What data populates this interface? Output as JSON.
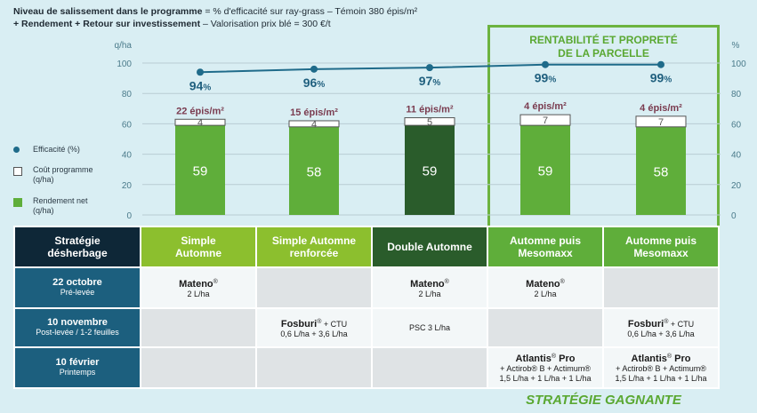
{
  "header": {
    "line1_bold": "Niveau de salissement dans le programme",
    "line1_rest": " = % d'efficacité sur ray-grass – Témoin 380 épis/m²",
    "line2_bold": "+ Rendement + Retour sur investissement",
    "line2_rest": " – Valorisation prix blé = 300 €/t"
  },
  "legend": {
    "efficacite": "Efficacité (%)",
    "cout": "Coût programme (q/ha)",
    "rendement": "Rendement net (q/ha)"
  },
  "winner": {
    "title_line1": "RENTABILITÉ ET PROPRETÉ",
    "title_line2": "DE LA PARCELLE",
    "footer": "STRATÉGIE GAGNANTE"
  },
  "colors": {
    "green": "#6cb33f",
    "green_bar": "#5fae3a",
    "dark_green": "#2a5c2b",
    "line": "#1f6b8a",
    "yellow_green": "#8cbf2e",
    "navy": "#0e2737",
    "row_label": "#1c5f7e"
  },
  "chart_data": {
    "type": "bar",
    "ylabel_left": "q/ha",
    "ylabel_right": "%",
    "ylim": [
      0,
      100
    ],
    "yticks": [
      0,
      20,
      40,
      60,
      80,
      100
    ],
    "categories": [
      "Simple Automne",
      "Simple Automne renforcée",
      "Double Automne",
      "Automne puis Mesomaxx",
      "Automne puis Mesomaxx"
    ],
    "series": [
      {
        "name": "Rendement net (q/ha)",
        "values": [
          59,
          58,
          59,
          59,
          58
        ]
      },
      {
        "name": "Coût programme (q/ha)",
        "values": [
          4,
          4,
          5,
          7,
          7
        ]
      },
      {
        "name": "Efficacité (%)",
        "values": [
          94,
          96,
          97,
          99,
          99
        ]
      }
    ],
    "efficacy_labels": [
      "94",
      "96",
      "97",
      "99",
      "99"
    ],
    "efficacy_unit": "%",
    "density_labels": [
      "22 épis/m²",
      "15 épis/m²",
      "11 épis/m²",
      "4 épis/m²",
      "4 épis/m²"
    ]
  },
  "table": {
    "corner_line1": "Stratégie",
    "corner_line2": "désherbage",
    "strategies": [
      {
        "line1": "Simple",
        "line2": "Automne"
      },
      {
        "line1": "Simple Automne",
        "line2": "renforcée"
      },
      {
        "line1": "Double Automne",
        "line2": ""
      },
      {
        "line1": "Automne puis",
        "line2": "Mesomaxx"
      },
      {
        "line1": "Automne puis",
        "line2": "Mesomaxx"
      }
    ],
    "row1": {
      "date": "22 octobre",
      "stage": "Pré-levée",
      "cells": [
        {
          "product": "Mateno",
          "sup": "®",
          "extra": "",
          "dose": "2 L/ha"
        },
        {
          "product": "",
          "sup": "",
          "extra": "",
          "dose": ""
        },
        {
          "product": "Mateno",
          "sup": "®",
          "extra": "",
          "dose": "2 L/ha"
        },
        {
          "product": "Mateno",
          "sup": "®",
          "extra": "",
          "dose": "2 L/ha"
        },
        {
          "product": "",
          "sup": "",
          "extra": "",
          "dose": ""
        }
      ]
    },
    "row2": {
      "date": "10 novembre",
      "stage": "Post-levée / 1-2 feuilles",
      "cells": [
        {
          "product": "",
          "sup": "",
          "extra": "",
          "dose": ""
        },
        {
          "product": "Fosburi",
          "sup": "®",
          "extra": " + CTU",
          "dose": "0,6 L/ha + 3,6 L/ha"
        },
        {
          "product": "",
          "sup": "",
          "extra": "",
          "dose": "PSC 3 L/ha"
        },
        {
          "product": "",
          "sup": "",
          "extra": "",
          "dose": ""
        },
        {
          "product": "Fosburi",
          "sup": "®",
          "extra": " + CTU",
          "dose": "0,6 L/ha + 3,6 L/ha"
        }
      ]
    },
    "row3": {
      "date": "10 février",
      "stage": "Printemps",
      "cells": [
        {
          "product": "",
          "sup": "",
          "extra": "",
          "dose": "",
          "dose2": ""
        },
        {
          "product": "",
          "sup": "",
          "extra": "",
          "dose": "",
          "dose2": ""
        },
        {
          "product": "",
          "sup": "",
          "extra": "",
          "dose": "",
          "dose2": ""
        },
        {
          "product": "Atlantis",
          "sup": "®",
          "extra": " Pro",
          "dose": "+ Actirob® B + Actimum®",
          "dose2": "1,5 L/ha + 1 L/ha + 1 L/ha"
        },
        {
          "product": "Atlantis",
          "sup": "®",
          "extra": " Pro",
          "dose": "+ Actirob® B + Actimum®",
          "dose2": "1,5 L/ha + 1 L/ha + 1 L/ha"
        }
      ]
    }
  }
}
